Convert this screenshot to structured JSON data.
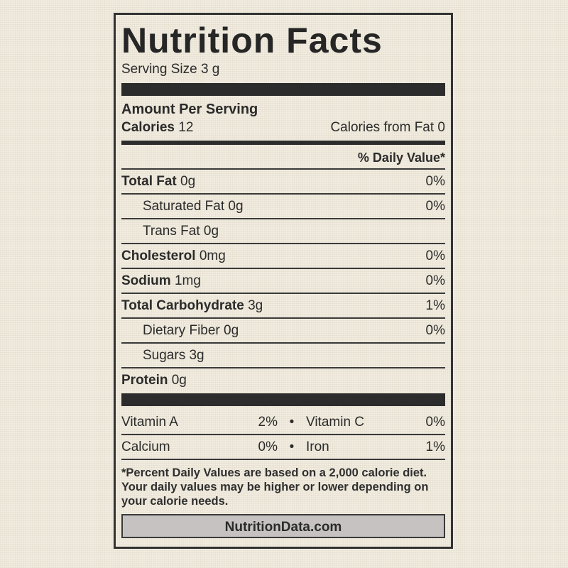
{
  "label": {
    "title": "Nutrition Facts",
    "serving_size": "Serving Size  3 g",
    "amount_per_serving": "Amount Per Serving",
    "calories_label": "Calories",
    "calories_value": "12",
    "calories_from_fat": "Calories from Fat 0",
    "daily_value_heading": "% Daily Value*",
    "nutrients": [
      {
        "name": "Total Fat",
        "amount": "0g",
        "dv": "0%"
      },
      {
        "name": "Saturated Fat",
        "amount": "0g",
        "dv": "0%"
      },
      {
        "name": "Trans Fat",
        "amount": "0g",
        "dv": ""
      },
      {
        "name": "Cholesterol",
        "amount": "0mg",
        "dv": "0%"
      },
      {
        "name": "Sodium",
        "amount": "1mg",
        "dv": "0%"
      },
      {
        "name": "Total Carbohydrate",
        "amount": "3g",
        "dv": "1%"
      },
      {
        "name": "Dietary Fiber",
        "amount": "0g",
        "dv": "0%"
      },
      {
        "name": "Sugars",
        "amount": "3g",
        "dv": ""
      },
      {
        "name": "Protein",
        "amount": "0g",
        "dv": ""
      }
    ],
    "vitamins": [
      {
        "left_name": "Vitamin A",
        "left_dv": "2%",
        "right_name": "Vitamin C",
        "right_dv": "0%"
      },
      {
        "left_name": "Calcium",
        "left_dv": "0%",
        "right_name": "Iron",
        "right_dv": "1%"
      }
    ],
    "bullet": "•",
    "footnote": "*Percent Daily Values are based on a 2,000 calorie diet. Your daily values may be higher or lower depending on your calorie needs.",
    "source": "NutritionData.com"
  }
}
